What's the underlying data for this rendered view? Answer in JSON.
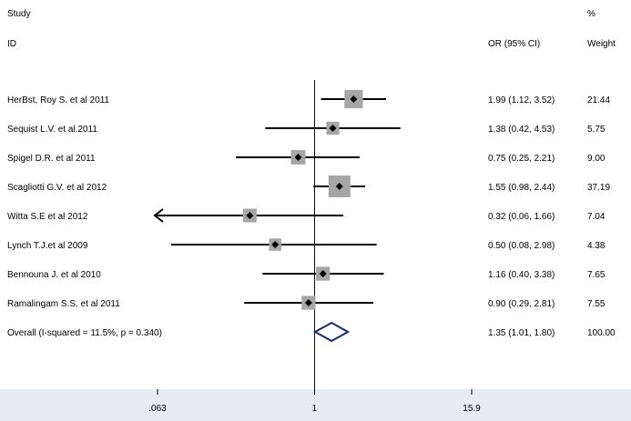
{
  "header": {
    "study_line1": "Study",
    "study_line2": "ID",
    "or_header": "OR (95% CI)",
    "weight_line1": "%",
    "weight_line2": "Weight"
  },
  "chart_data": {
    "type": "forest",
    "x_scale": "log",
    "xlim": [
      0.063,
      15.9
    ],
    "reference_line": 1,
    "x_ticks": [
      ".063",
      "1",
      "15.9"
    ],
    "x_tick_values": [
      0.063,
      1,
      15.9
    ],
    "studies": [
      {
        "label": "HerBst, Roy S. et al 2011",
        "or": 1.99,
        "lo": 1.12,
        "hi": 3.52,
        "ci_text": "1.99 (1.12, 3.52)",
        "weight": "21.44"
      },
      {
        "label": "Sequist L.V. et al.2011",
        "or": 1.38,
        "lo": 0.42,
        "hi": 4.53,
        "ci_text": "1.38 (0.42, 4.53)",
        "weight": "5.75"
      },
      {
        "label": "Spigel D.R. et al 2011",
        "or": 0.75,
        "lo": 0.25,
        "hi": 2.21,
        "ci_text": "0.75 (0.25, 2.21)",
        "weight": "9.00"
      },
      {
        "label": "Scagliotti G.V. et al 2012",
        "or": 1.55,
        "lo": 0.98,
        "hi": 2.44,
        "ci_text": "1.55 (0.98, 2.44)",
        "weight": "37.19"
      },
      {
        "label": "Witta S.E et al 2012",
        "or": 0.32,
        "lo": 0.06,
        "hi": 1.66,
        "ci_text": "0.32 (0.06, 1.66)",
        "weight": "7.04"
      },
      {
        "label": "Lynch T.J.et al 2009",
        "or": 0.5,
        "lo": 0.08,
        "hi": 2.98,
        "ci_text": "0.50 (0.08, 2.98)",
        "weight": "4.38"
      },
      {
        "label": "Bennouna J. et al 2010",
        "or": 1.16,
        "lo": 0.4,
        "hi": 3.38,
        "ci_text": "1.16 (0.40, 3.38)",
        "weight": "7.65"
      },
      {
        "label": "Ramalingam S.S. et al 2011",
        "or": 0.9,
        "lo": 0.29,
        "hi": 2.81,
        "ci_text": "0.90 (0.29, 2.81)",
        "weight": "7.55"
      }
    ],
    "overall": {
      "label": "Overall  (I-squared = 11.5%, p = 0.340)",
      "or": 1.35,
      "lo": 1.01,
      "hi": 1.8,
      "ci_text": "1.35 (1.01, 1.80)",
      "weight": "100.00"
    },
    "colors": {
      "box": "#a6a6a6",
      "line": "#000000",
      "diamond": "#1a2a6c",
      "axis_band": "#e6edf2"
    }
  }
}
